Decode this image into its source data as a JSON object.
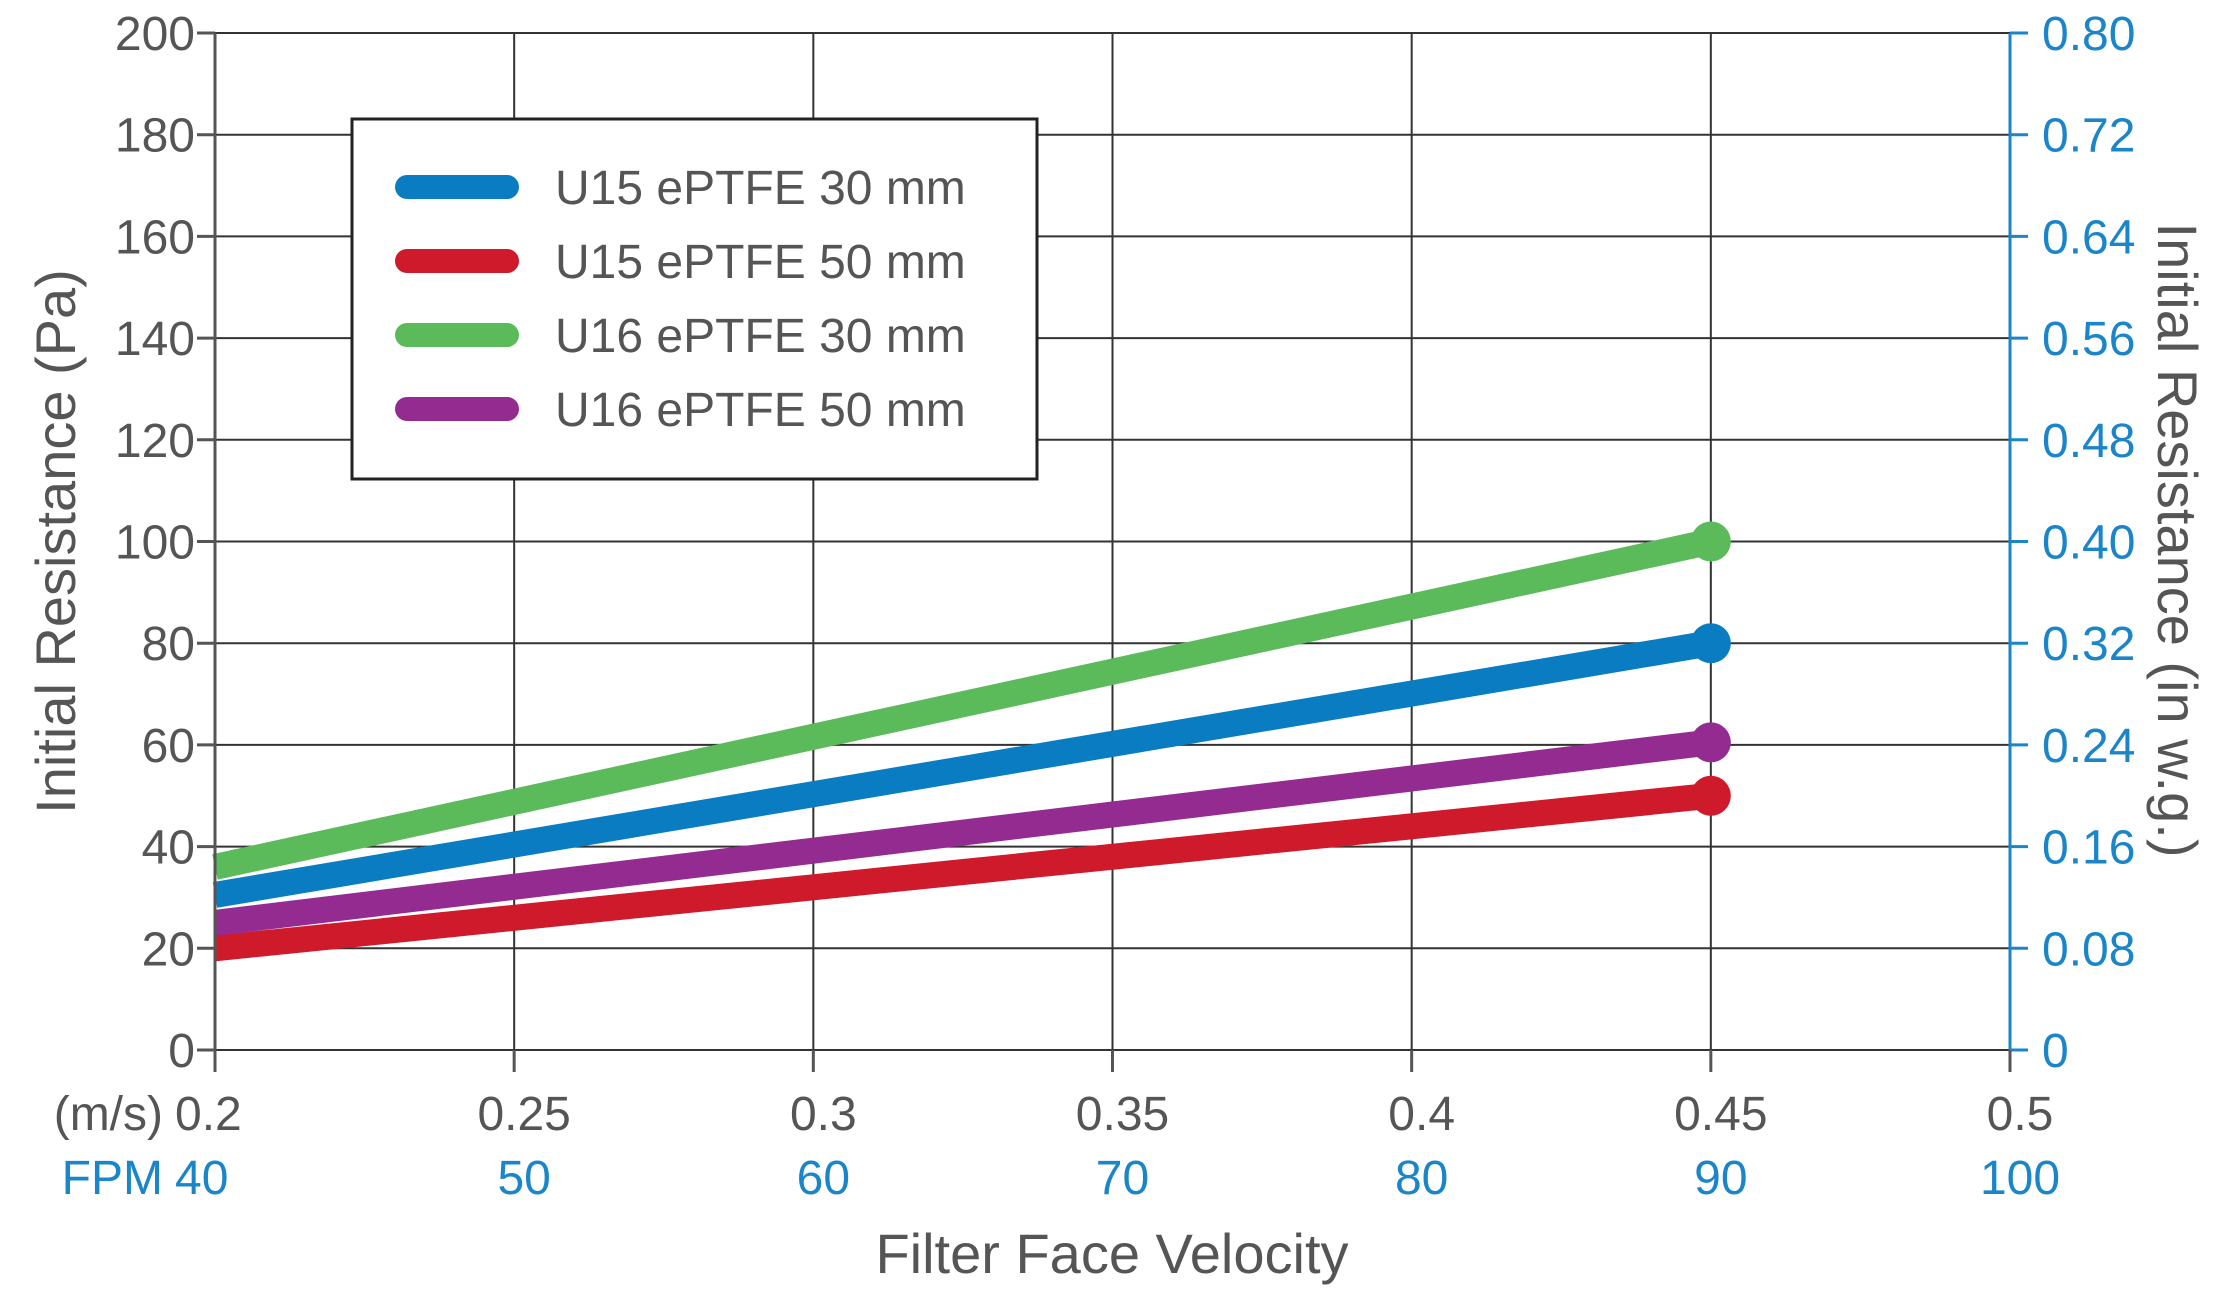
{
  "chart_data": {
    "type": "line",
    "x_label": "Filter Face Velocity",
    "x_unit_label": "(m/s)",
    "x_secondary_unit_label": "FPM",
    "x_ticks": [
      "0.2",
      "0.25",
      "0.3",
      "0.35",
      "0.4",
      "0.45",
      "0.5"
    ],
    "x_secondary_ticks": [
      "40",
      "50",
      "60",
      "70",
      "80",
      "90",
      "100"
    ],
    "xlim": [
      0.2,
      0.5
    ],
    "y_label": "Initial Resistance (Pa)",
    "y_ticks": [
      "0",
      "20",
      "40",
      "60",
      "80",
      "100",
      "120",
      "140",
      "160",
      "180",
      "200"
    ],
    "ylim": [
      0,
      200
    ],
    "y2_label": "Initial Resistance (in w.g.)",
    "y2_ticks": [
      "0",
      "0.08",
      "0.16",
      "0.24",
      "0.32",
      "0.40",
      "0.48",
      "0.56",
      "0.64",
      "0.72",
      "0.80"
    ],
    "grid": true,
    "legend_position": "top-left",
    "colors": {
      "primary_axis": "#555555",
      "secondary_axis": "#1a85c8",
      "grid": "#333333"
    },
    "series": [
      {
        "name": "U15 ePTFE 30 mm",
        "color": "#0a7cc1",
        "x": [
          0.2,
          0.45
        ],
        "y": [
          30.5,
          80
        ]
      },
      {
        "name": "U15 ePTFE 50 mm",
        "color": "#cf1a2c",
        "x": [
          0.2,
          0.45
        ],
        "y": [
          20,
          50
        ]
      },
      {
        "name": "U16 ePTFE 30 mm",
        "color": "#5bbb5a",
        "x": [
          0.2,
          0.45
        ],
        "y": [
          36,
          100
        ]
      },
      {
        "name": "U16 ePTFE 50 mm",
        "color": "#932b90",
        "x": [
          0.2,
          0.45
        ],
        "y": [
          25,
          60.5
        ]
      }
    ]
  }
}
